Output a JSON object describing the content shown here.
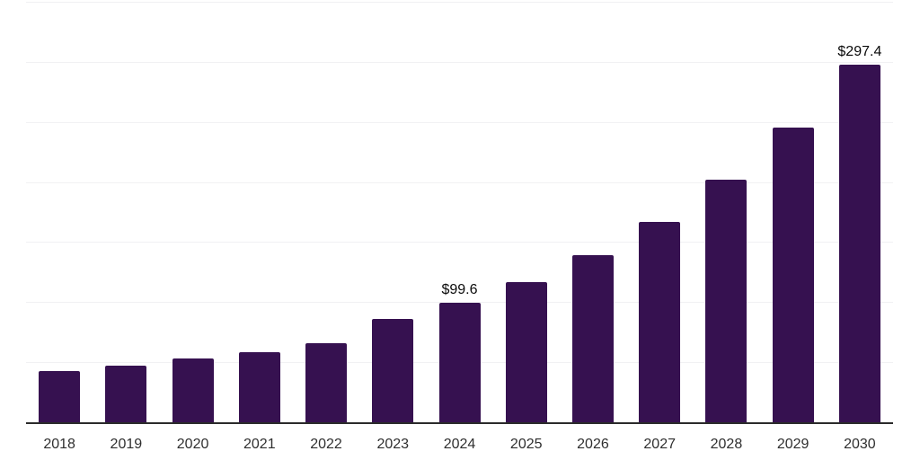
{
  "chart_data": {
    "type": "bar",
    "title": "",
    "xlabel": "",
    "ylabel": "",
    "categories": [
      "2018",
      "2019",
      "2020",
      "2021",
      "2022",
      "2023",
      "2024",
      "2025",
      "2026",
      "2027",
      "2028",
      "2029",
      "2030"
    ],
    "values": [
      43,
      47,
      53,
      58.5,
      65.5,
      86,
      99.6,
      117,
      139,
      167,
      202,
      245,
      297.4
    ],
    "data_labels": [
      {
        "category": "2024",
        "text": "$99.6"
      },
      {
        "category": "2030",
        "text": "$297.4"
      }
    ],
    "value_prefix": "$",
    "ylim": [
      0,
      350
    ],
    "grid_step": 50,
    "grid": true,
    "legend": false,
    "colors": {
      "bar": "#361150",
      "gridline": "#f1f1f3",
      "axis_line": "#2b2b2b",
      "data_label": "#0a0a0a",
      "tick_label": "#2f2f2f",
      "background": "#ffffff"
    }
  }
}
